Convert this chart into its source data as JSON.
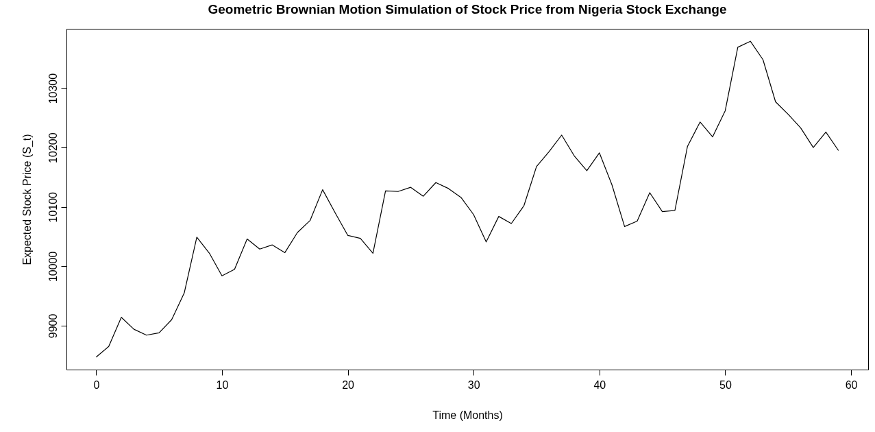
{
  "chart_data": {
    "type": "line",
    "title": "Geometric Brownian Motion Simulation of Stock Price from Nigeria Stock Exchange",
    "xlabel": "Time (Months)",
    "ylabel": "Expected Stock Price (S_t)",
    "x": [
      0,
      1,
      2,
      3,
      4,
      5,
      6,
      7,
      8,
      9,
      10,
      11,
      12,
      13,
      14,
      15,
      16,
      17,
      18,
      19,
      20,
      21,
      22,
      23,
      24,
      25,
      26,
      27,
      28,
      29,
      30,
      31,
      32,
      33,
      34,
      35,
      36,
      37,
      38,
      39,
      40,
      41,
      42,
      43,
      44,
      45,
      46,
      47,
      48,
      49,
      50,
      51,
      52,
      53,
      54,
      55,
      56,
      57,
      58,
      59
    ],
    "series": [
      {
        "color": "#000000",
        "values": [
          9847,
          9865,
          9914,
          9894,
          9884,
          9888,
          9910,
          9955,
          10049,
          10022,
          9984,
          9995,
          10046,
          10029,
          10036,
          10023,
          10057,
          10077,
          10129,
          10090,
          10052,
          10047,
          10022,
          10127,
          10126,
          10133,
          10118,
          10141,
          10131,
          10116,
          10087,
          10041,
          10084,
          10072,
          10102,
          10168,
          10193,
          10221,
          10186,
          10161,
          10191,
          10137,
          10067,
          10076,
          10124,
          10092,
          10094,
          10202,
          10243,
          10218,
          10262,
          10369,
          10379,
          10348,
          10277,
          10256,
          10233,
          10200,
          10226,
          10195
        ]
      }
    ],
    "xlim": [
      -2.36,
      61.36
    ],
    "ylim": [
      9826,
      10400
    ],
    "xticks": [
      0,
      10,
      20,
      30,
      40,
      50,
      60
    ],
    "yticks": [
      9900,
      10000,
      10100,
      10200,
      10300
    ],
    "grid": false,
    "marker": "none",
    "line_style": "solid"
  }
}
